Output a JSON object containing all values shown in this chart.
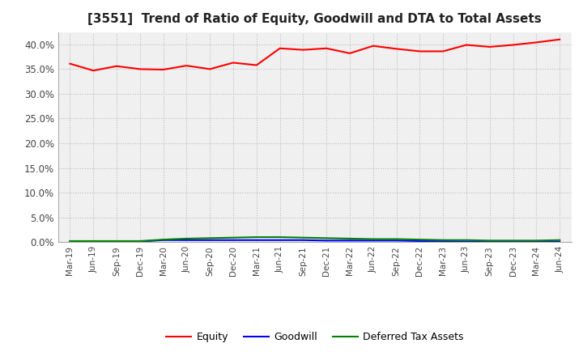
{
  "title": "[3551]  Trend of Ratio of Equity, Goodwill and DTA to Total Assets",
  "x_labels": [
    "Mar-19",
    "Jun-19",
    "Sep-19",
    "Dec-19",
    "Mar-20",
    "Jun-20",
    "Sep-20",
    "Dec-20",
    "Mar-21",
    "Jun-21",
    "Sep-21",
    "Dec-21",
    "Mar-22",
    "Jun-22",
    "Sep-22",
    "Dec-22",
    "Mar-23",
    "Jun-23",
    "Sep-23",
    "Dec-23",
    "Mar-24",
    "Jun-24"
  ],
  "equity": [
    0.361,
    0.347,
    0.356,
    0.35,
    0.349,
    0.357,
    0.35,
    0.363,
    0.358,
    0.392,
    0.389,
    0.392,
    0.382,
    0.397,
    0.391,
    0.386,
    0.386,
    0.399,
    0.395,
    0.399,
    0.404,
    0.41
  ],
  "goodwill": [
    0.001,
    0.001,
    0.001,
    0.001,
    0.004,
    0.004,
    0.004,
    0.004,
    0.004,
    0.004,
    0.004,
    0.003,
    0.003,
    0.003,
    0.003,
    0.002,
    0.002,
    0.001,
    0.001,
    0.001,
    0.001,
    0.001
  ],
  "dta": [
    0.002,
    0.002,
    0.002,
    0.002,
    0.005,
    0.007,
    0.008,
    0.009,
    0.01,
    0.01,
    0.009,
    0.008,
    0.007,
    0.006,
    0.006,
    0.005,
    0.004,
    0.004,
    0.003,
    0.003,
    0.003,
    0.004
  ],
  "equity_color": "#ff0000",
  "goodwill_color": "#0000ff",
  "dta_color": "#008000",
  "ylim": [
    0.0,
    0.425
  ],
  "yticks": [
    0.0,
    0.05,
    0.1,
    0.15,
    0.2,
    0.25,
    0.3,
    0.35,
    0.4
  ],
  "background_color": "#ffffff",
  "plot_bg_color": "#f0f0f0",
  "grid_color": "#bbbbbb"
}
